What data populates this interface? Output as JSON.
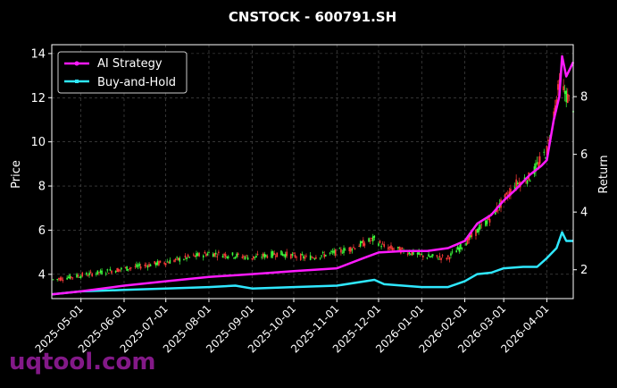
{
  "chart_data": {
    "type": "line",
    "title": "CNSTOCK - 600791.SH",
    "ylabel_left": "Price",
    "ylabel_right": "Return",
    "x_ticks": [
      "2025-05-01",
      "2025-06-01",
      "2025-07-01",
      "2025-08-01",
      "2025-09-01",
      "2025-10-01",
      "2025-11-01",
      "2025-12-01",
      "2026-01-01",
      "2026-02-01",
      "2026-03-01",
      "2026-04-01"
    ],
    "x_range": [
      "2025-04-10",
      "2026-04-20"
    ],
    "ylim_left": [
      2.9,
      14.4
    ],
    "yticks_left": [
      4,
      6,
      8,
      10,
      12,
      14
    ],
    "ylim_right": [
      1.0,
      9.8
    ],
    "yticks_right": [
      2,
      4,
      6,
      8
    ],
    "grid": true,
    "legend_position": "top-left",
    "colors": {
      "ai": "#ff1aff",
      "bh": "#2fe8ff",
      "up": "#3cff3c",
      "down": "#ff3b3b",
      "watermark": "#9a1ea0"
    },
    "price_trend": [
      [
        "2025-04-10",
        3.75
      ],
      [
        "2025-05-01",
        3.95
      ],
      [
        "2025-06-01",
        4.25
      ],
      [
        "2025-07-01",
        4.55
      ],
      [
        "2025-08-01",
        4.95
      ],
      [
        "2025-08-20",
        4.85
      ],
      [
        "2025-09-01",
        4.75
      ],
      [
        "2025-09-20",
        4.95
      ],
      [
        "2025-10-10",
        4.75
      ],
      [
        "2025-10-25",
        4.9
      ],
      [
        "2025-11-10",
        5.15
      ],
      [
        "2025-11-28",
        5.6
      ],
      [
        "2025-12-05",
        5.25
      ],
      [
        "2025-12-20",
        5.05
      ],
      [
        "2026-01-05",
        4.8
      ],
      [
        "2026-01-20",
        4.75
      ],
      [
        "2026-02-01",
        5.4
      ],
      [
        "2026-02-20",
        6.6
      ],
      [
        "2026-03-10",
        8.1
      ],
      [
        "2026-03-20",
        8.4
      ],
      [
        "2026-04-01",
        9.6
      ],
      [
        "2026-04-10",
        12.6
      ],
      [
        "2026-04-20",
        11.6
      ]
    ],
    "series": [
      {
        "name": "AI Strategy",
        "values": [
          [
            "2025-04-10",
            1.15
          ],
          [
            "2025-05-01",
            1.25
          ],
          [
            "2025-06-01",
            1.45
          ],
          [
            "2025-07-01",
            1.6
          ],
          [
            "2025-08-01",
            1.75
          ],
          [
            "2025-09-01",
            1.85
          ],
          [
            "2025-10-01",
            1.95
          ],
          [
            "2025-11-01",
            2.05
          ],
          [
            "2025-11-20",
            2.4
          ],
          [
            "2025-12-01",
            2.6
          ],
          [
            "2025-12-20",
            2.65
          ],
          [
            "2026-01-05",
            2.65
          ],
          [
            "2026-01-20",
            2.75
          ],
          [
            "2026-02-01",
            3.0
          ],
          [
            "2026-02-10",
            3.6
          ],
          [
            "2026-02-20",
            3.9
          ],
          [
            "2026-03-01",
            4.4
          ],
          [
            "2026-03-10",
            4.8
          ],
          [
            "2026-03-20",
            5.3
          ],
          [
            "2026-03-28",
            5.6
          ],
          [
            "2026-04-01",
            5.8
          ],
          [
            "2026-04-06",
            7.2
          ],
          [
            "2026-04-10",
            8.0
          ],
          [
            "2026-04-12",
            9.4
          ],
          [
            "2026-04-15",
            8.7
          ],
          [
            "2026-04-20",
            9.2
          ]
        ]
      },
      {
        "name": "Buy-and-Hold",
        "values": [
          [
            "2025-04-10",
            1.15
          ],
          [
            "2025-05-01",
            1.25
          ],
          [
            "2025-06-01",
            1.3
          ],
          [
            "2025-07-01",
            1.35
          ],
          [
            "2025-08-01",
            1.4
          ],
          [
            "2025-08-20",
            1.45
          ],
          [
            "2025-09-01",
            1.35
          ],
          [
            "2025-10-01",
            1.4
          ],
          [
            "2025-11-01",
            1.45
          ],
          [
            "2025-11-28",
            1.65
          ],
          [
            "2025-12-05",
            1.5
          ],
          [
            "2026-01-01",
            1.4
          ],
          [
            "2026-01-20",
            1.4
          ],
          [
            "2026-02-01",
            1.6
          ],
          [
            "2026-02-10",
            1.85
          ],
          [
            "2026-02-20",
            1.9
          ],
          [
            "2026-03-01",
            2.05
          ],
          [
            "2026-03-15",
            2.1
          ],
          [
            "2026-03-25",
            2.1
          ],
          [
            "2026-04-01",
            2.4
          ],
          [
            "2026-04-08",
            2.75
          ],
          [
            "2026-04-12",
            3.3
          ],
          [
            "2026-04-15",
            3.0
          ],
          [
            "2026-04-20",
            3.0
          ]
        ]
      }
    ]
  },
  "watermark": "uqtool.com"
}
